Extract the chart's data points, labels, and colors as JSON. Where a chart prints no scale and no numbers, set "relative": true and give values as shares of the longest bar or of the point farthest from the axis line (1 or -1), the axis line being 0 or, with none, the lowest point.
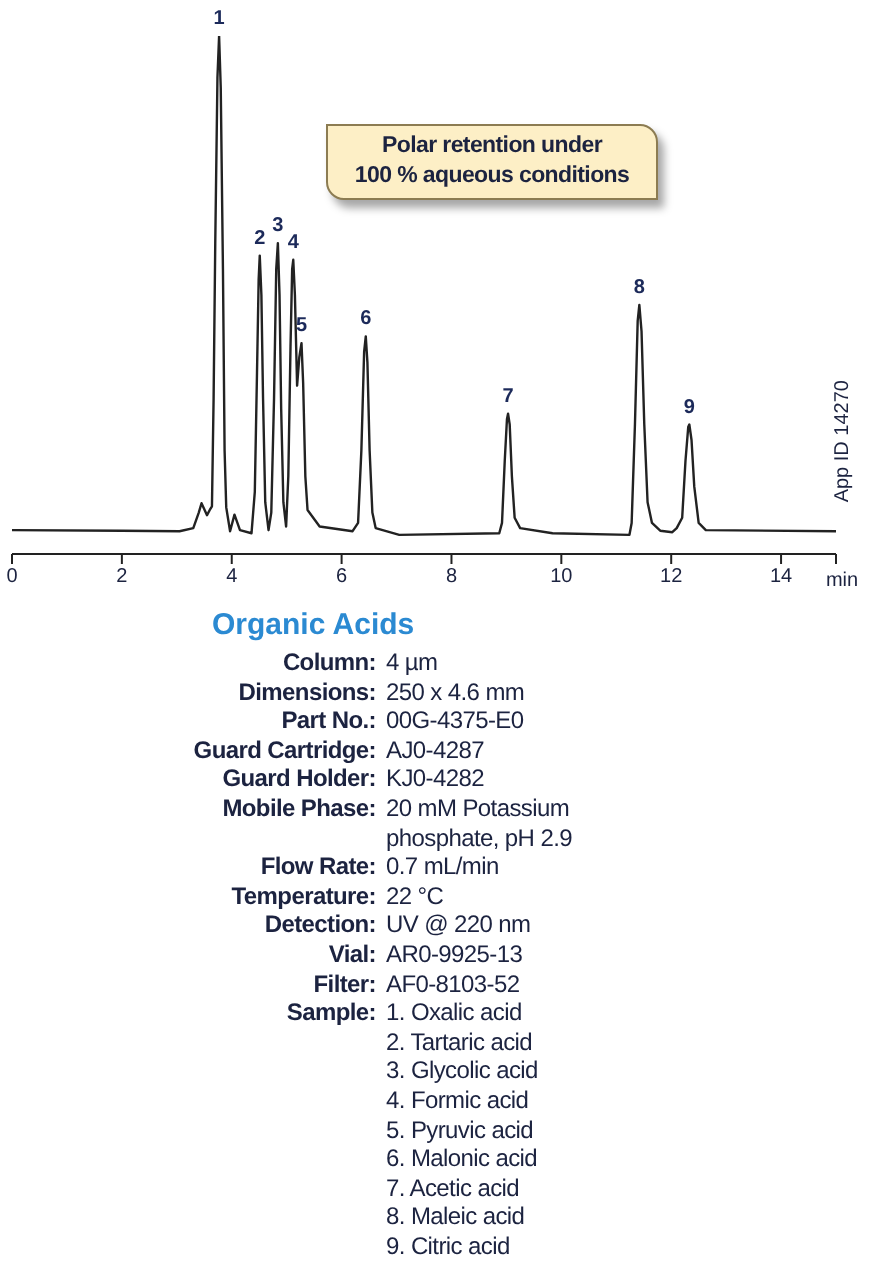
{
  "chart_data": {
    "type": "line",
    "title": "Organic Acids",
    "xlabel": "min",
    "relative": true,
    "marker": "none",
    "line_style": "solid",
    "x": [
      0,
      2.0,
      3.05,
      3.3,
      3.4,
      3.45,
      3.55,
      3.6,
      3.64,
      3.67,
      3.7,
      3.74,
      3.77,
      3.8,
      3.84,
      3.87,
      3.9,
      3.97,
      4.05,
      4.15,
      4.36,
      4.42,
      4.46,
      4.49,
      4.51,
      4.54,
      4.57,
      4.61,
      4.67,
      4.72,
      4.77,
      4.81,
      4.84,
      4.87,
      4.9,
      4.94,
      4.99,
      5.03,
      5.07,
      5.1,
      5.12,
      5.15,
      5.19,
      5.23,
      5.27,
      5.3,
      5.34,
      5.38,
      5.6,
      6.2,
      6.3,
      6.36,
      6.41,
      6.44,
      6.47,
      6.51,
      6.56,
      6.62,
      7.05,
      8.87,
      8.92,
      8.97,
      9.01,
      9.03,
      9.06,
      9.1,
      9.15,
      9.25,
      9.84,
      11.24,
      11.28,
      11.34,
      11.39,
      11.42,
      11.46,
      11.51,
      11.57,
      11.65,
      11.8,
      12.02,
      12.1,
      12.2,
      12.26,
      12.31,
      12.33,
      12.37,
      12.42,
      12.5,
      12.63,
      15
    ],
    "series": [
      {
        "color": "#222222",
        "values": [
          0.046,
          0.045,
          0.044,
          0.05,
          0.08,
          0.098,
          0.075,
          0.085,
          0.092,
          0.3,
          0.6,
          0.92,
          1.0,
          0.9,
          0.55,
          0.2,
          0.09,
          0.044,
          0.076,
          0.046,
          0.04,
          0.12,
          0.35,
          0.53,
          0.576,
          0.5,
          0.3,
          0.1,
          0.046,
          0.08,
          0.3,
          0.55,
          0.6,
          0.5,
          0.28,
          0.1,
          0.053,
          0.15,
          0.4,
          0.55,
          0.568,
          0.5,
          0.325,
          0.38,
          0.407,
          0.33,
          0.15,
          0.085,
          0.053,
          0.044,
          0.06,
          0.2,
          0.39,
          0.42,
          0.37,
          0.2,
          0.08,
          0.05,
          0.037,
          0.04,
          0.06,
          0.18,
          0.26,
          0.271,
          0.25,
          0.15,
          0.07,
          0.05,
          0.04,
          0.037,
          0.06,
          0.25,
          0.45,
          0.481,
          0.43,
          0.25,
          0.1,
          0.06,
          0.045,
          0.042,
          0.05,
          0.07,
          0.18,
          0.245,
          0.25,
          0.22,
          0.13,
          0.06,
          0.046,
          0.044
        ]
      }
    ],
    "xlim": [
      0,
      15
    ],
    "xticks": [
      0,
      2,
      4,
      6,
      8,
      10,
      12,
      14,
      {
        "value": 15,
        "label": null
      }
    ],
    "annotations": [
      {
        "text": "1",
        "x": 3.77,
        "y": 1.0
      },
      {
        "text": "2",
        "x": 4.51,
        "y": 0.576
      },
      {
        "text": "3",
        "x": 4.84,
        "y": 0.6
      },
      {
        "text": "4",
        "x": 5.12,
        "y": 0.568
      },
      {
        "text": "5",
        "x": 5.27,
        "y": 0.407
      },
      {
        "text": "6",
        "x": 6.44,
        "y": 0.42
      },
      {
        "text": "7",
        "x": 9.03,
        "y": 0.271
      },
      {
        "text": "8",
        "x": 11.42,
        "y": 0.481
      },
      {
        "text": "9",
        "x": 12.33,
        "y": 0.25
      },
      "Polar retention under\n100 % aqueous conditions",
      "App ID 14270",
      "Column: 4 µm",
      "Dimensions: 250 x 4.6 mm",
      "Part No.: 00G-4375-E0",
      "Guard Cartridge: AJ0-4287",
      "Guard Holder: KJ0-4282",
      "Mobile Phase: 20 mM Potassium phosphate, pH 2.9",
      "Flow Rate: 0.7 mL/min",
      "Temperature: 22 °C",
      "Detection: UV @ 220 nm",
      "Vial: AR0-9925-13",
      "Filter: AF0-8103-52",
      "Sample: 1. Oxalic acid",
      "2. Tartaric acid",
      "3. Glycolic acid",
      "4. Formic acid",
      "5. Pyruvic acid",
      "6. Malonic acid",
      "7. Acetic acid",
      "8. Maleic acid",
      "9. Citric acid"
    ]
  }
}
